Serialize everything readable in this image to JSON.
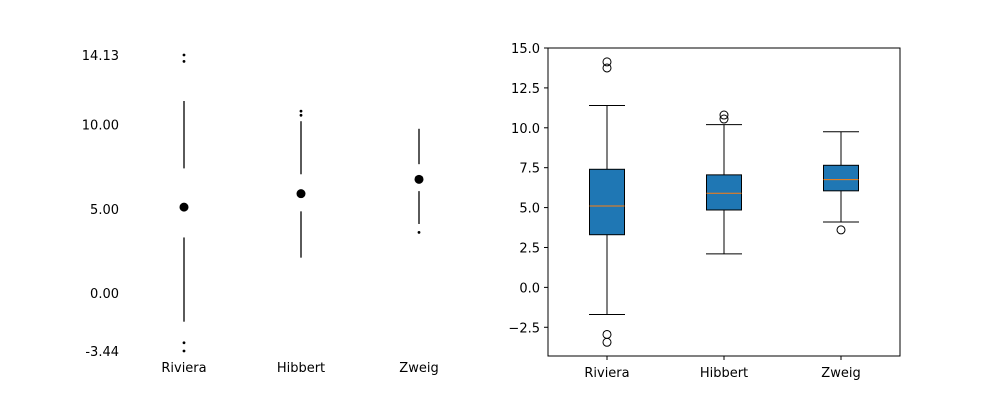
{
  "chart_data": [
    {
      "type": "boxplot",
      "style": "minimalist dot-and-whisker (Tufte)",
      "categories": [
        "Riviera",
        "Hibbert",
        "Zweig"
      ],
      "series": [
        {
          "category": "Riviera",
          "whisker_low": -1.7,
          "q1": 3.3,
          "median": 5.1,
          "q3": 7.4,
          "whisker_high": 11.4,
          "outliers": [
            -2.95,
            -3.44,
            13.75,
            14.13
          ]
        },
        {
          "category": "Hibbert",
          "whisker_low": 2.1,
          "q1": 4.85,
          "median": 5.9,
          "q3": 7.05,
          "whisker_high": 10.2,
          "outliers": [
            10.55,
            10.8
          ]
        },
        {
          "category": "Zweig",
          "whisker_low": 4.1,
          "q1": 6.05,
          "median": 6.75,
          "q3": 7.65,
          "whisker_high": 9.75,
          "outliers": [
            3.6
          ]
        }
      ],
      "yticks": [
        -3.44,
        0.0,
        5.0,
        10.0,
        14.13
      ],
      "ytick_labels": [
        "-3.44",
        "0.00",
        "5.00",
        "10.00",
        "14.13"
      ],
      "ylim": [
        -3.44,
        14.13
      ],
      "frame": false,
      "grid": false
    },
    {
      "type": "boxplot",
      "style": "patch_artist filled boxes",
      "box_color": "#1f77b4",
      "median_color": "#ff7f0e",
      "categories": [
        "Riviera",
        "Hibbert",
        "Zweig"
      ],
      "series": [
        {
          "category": "Riviera",
          "whisker_low": -1.7,
          "q1": 3.3,
          "median": 5.1,
          "q3": 7.4,
          "whisker_high": 11.4,
          "outliers": [
            -2.95,
            -3.44,
            13.75,
            14.13
          ]
        },
        {
          "category": "Hibbert",
          "whisker_low": 2.1,
          "q1": 4.85,
          "median": 5.9,
          "q3": 7.05,
          "whisker_high": 10.2,
          "outliers": [
            10.55,
            10.8
          ]
        },
        {
          "category": "Zweig",
          "whisker_low": 4.1,
          "q1": 6.05,
          "median": 6.75,
          "q3": 7.65,
          "whisker_high": 9.75,
          "outliers": [
            3.6
          ]
        }
      ],
      "yticks": [
        -2.5,
        0.0,
        2.5,
        5.0,
        7.5,
        10.0,
        12.5,
        15.0
      ],
      "ytick_labels": [
        "−2.5",
        "0.0",
        "2.5",
        "5.0",
        "7.5",
        "10.0",
        "12.5",
        "15.0"
      ],
      "ylim": [
        -4.3,
        15.0
      ],
      "frame": true,
      "grid": false
    }
  ]
}
